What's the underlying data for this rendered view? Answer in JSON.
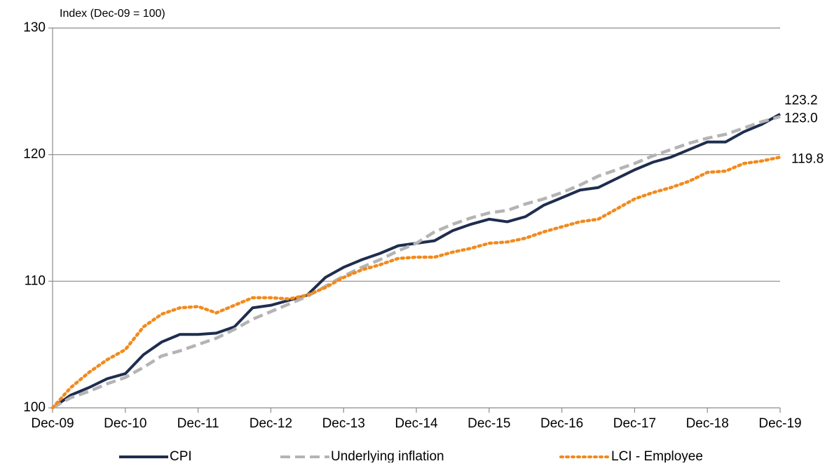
{
  "chart_data": {
    "type": "line",
    "title": "Index (Dec-09 = 100)",
    "categories": [
      "Dec-09",
      null,
      null,
      null,
      "Dec-10",
      null,
      null,
      null,
      "Dec-11",
      null,
      null,
      null,
      "Dec-12",
      null,
      null,
      null,
      "Dec-13",
      null,
      null,
      null,
      "Dec-14",
      null,
      null,
      null,
      "Dec-15",
      null,
      null,
      null,
      "Dec-16",
      null,
      null,
      null,
      "Dec-17",
      null,
      null,
      null,
      "Dec-18",
      null,
      null,
      null,
      "Dec-19"
    ],
    "series": [
      {
        "name": "CPI",
        "color": "#1f2d4e",
        "dash": "solid",
        "values": [
          100,
          101.0,
          101.6,
          102.3,
          102.7,
          104.2,
          105.2,
          105.8,
          105.8,
          105.9,
          106.4,
          107.9,
          108.1,
          108.5,
          108.9,
          110.3,
          111.1,
          111.7,
          112.2,
          112.8,
          113.0,
          113.2,
          114.0,
          114.5,
          114.9,
          114.7,
          115.1,
          116.0,
          116.6,
          117.2,
          117.4,
          118.1,
          118.8,
          119.4,
          119.8,
          120.4,
          121.0,
          121.0,
          121.8,
          122.4,
          123.2
        ],
        "value_labels": [
          null,
          null,
          null,
          null,
          null,
          null,
          null,
          null,
          null,
          null,
          null,
          null,
          null,
          null,
          null,
          null,
          null,
          null,
          null,
          null,
          null,
          null,
          null,
          null,
          null,
          null,
          null,
          null,
          null,
          null,
          null,
          null,
          null,
          null,
          null,
          null,
          null,
          null,
          null,
          null,
          "123.2"
        ]
      },
      {
        "name": "Underlying inflation",
        "color": "#b4b4b4",
        "dash": "dashed",
        "values": [
          100,
          100.8,
          101.3,
          101.9,
          102.4,
          103.2,
          104.1,
          104.5,
          105.0,
          105.5,
          106.2,
          107.0,
          107.6,
          108.2,
          108.8,
          109.6,
          110.4,
          111.1,
          111.7,
          112.4,
          113.0,
          113.9,
          114.5,
          115.0,
          115.4,
          115.6,
          116.1,
          116.5,
          117.0,
          117.6,
          118.3,
          118.8,
          119.3,
          119.9,
          120.4,
          120.9,
          121.3,
          121.6,
          122.1,
          122.6,
          123.0
        ],
        "value_labels": [
          null,
          null,
          null,
          null,
          null,
          null,
          null,
          null,
          null,
          null,
          null,
          null,
          null,
          null,
          null,
          null,
          null,
          null,
          null,
          null,
          null,
          null,
          null,
          null,
          null,
          null,
          null,
          null,
          null,
          null,
          null,
          null,
          null,
          null,
          null,
          null,
          null,
          null,
          null,
          null,
          "123.0"
        ]
      },
      {
        "name": "LCI - Employee",
        "color": "#f28a1c",
        "dash": "dotted",
        "values": [
          100,
          101.6,
          102.8,
          103.8,
          104.6,
          106.4,
          107.4,
          107.9,
          108.0,
          107.5,
          108.1,
          108.7,
          108.7,
          108.6,
          108.9,
          109.5,
          110.3,
          110.9,
          111.3,
          111.8,
          111.9,
          111.9,
          112.3,
          112.6,
          113.0,
          113.1,
          113.4,
          113.9,
          114.3,
          114.7,
          114.9,
          115.7,
          116.5,
          117.0,
          117.4,
          117.9,
          118.6,
          118.7,
          119.3,
          119.5,
          119.8
        ],
        "value_labels": [
          null,
          null,
          null,
          null,
          null,
          null,
          null,
          null,
          null,
          null,
          null,
          null,
          null,
          null,
          null,
          null,
          null,
          null,
          null,
          null,
          null,
          null,
          null,
          null,
          null,
          null,
          null,
          null,
          null,
          null,
          null,
          null,
          null,
          null,
          null,
          null,
          null,
          null,
          null,
          null,
          "119.8"
        ]
      }
    ],
    "ylim": [
      100,
      130
    ],
    "yticks": [
      100,
      110,
      120,
      130
    ],
    "grid": true,
    "legend": "bottom"
  }
}
